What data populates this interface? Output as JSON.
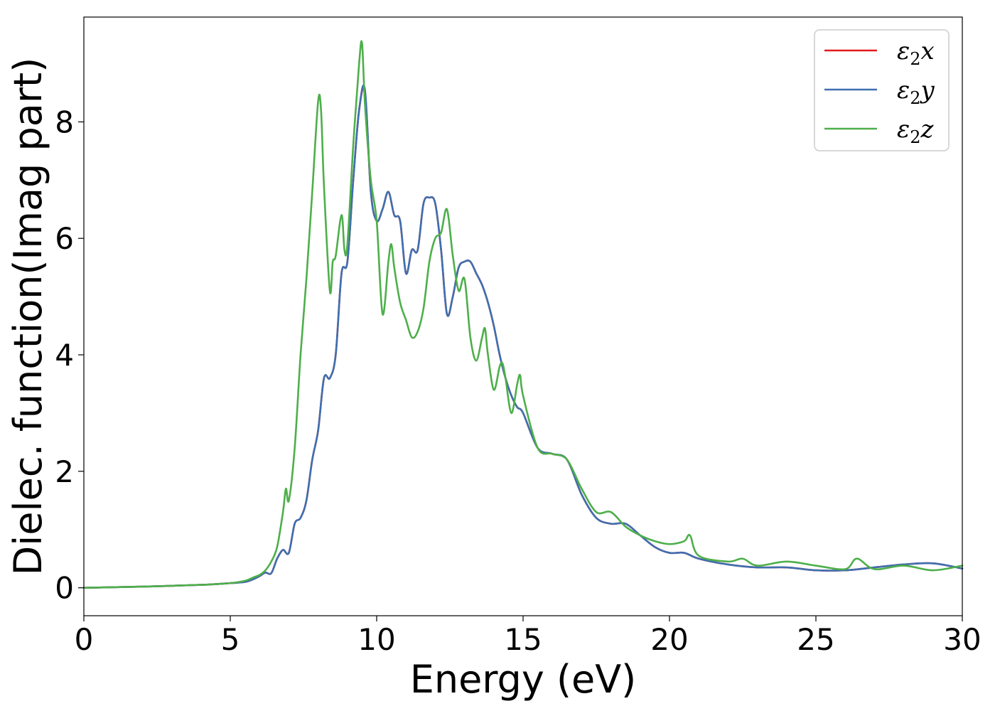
{
  "chart_data": {
    "type": "line",
    "title": "",
    "xlabel": "Energy (eV)",
    "ylabel": "Dielec. function(Imag part)",
    "xlim": [
      0,
      30
    ],
    "ylim": [
      -0.48,
      9.8
    ],
    "xticks": [
      "0",
      "5",
      "10",
      "15",
      "20",
      "25",
      "30"
    ],
    "yticks": [
      "0",
      "2",
      "4",
      "6",
      "8"
    ],
    "grid": false,
    "legend_position": "top-right",
    "series": [
      {
        "name": "ε₂x",
        "legend_base": "ε",
        "legend_sub": "2",
        "legend_suffix": "x",
        "color": "#e41a1c",
        "x": [
          0,
          2,
          4,
          5,
          5.5,
          5.8,
          6.0,
          6.2,
          6.4,
          6.6,
          6.8,
          7.0,
          7.2,
          7.4,
          7.6,
          7.8,
          8.0,
          8.2,
          8.4,
          8.6,
          8.8,
          9.0,
          9.2,
          9.4,
          9.6,
          9.8,
          10.0,
          10.2,
          10.4,
          10.6,
          10.8,
          11.0,
          11.2,
          11.4,
          11.6,
          11.8,
          12.0,
          12.2,
          12.4,
          12.6,
          12.8,
          13.0,
          13.2,
          13.4,
          13.6,
          13.8,
          14.0,
          14.2,
          14.4,
          14.6,
          14.8,
          15.0,
          15.5,
          16.0,
          16.5,
          17.0,
          17.5,
          18.0,
          18.5,
          19.0,
          19.5,
          20.0,
          20.5,
          21.0,
          22.0,
          23.0,
          24.0,
          25.0,
          26.0,
          27.0,
          28.0,
          29.0,
          30.0
        ],
        "y": [
          0.0,
          0.02,
          0.05,
          0.08,
          0.1,
          0.15,
          0.2,
          0.26,
          0.25,
          0.5,
          0.65,
          0.6,
          1.1,
          1.2,
          1.5,
          2.2,
          2.7,
          3.6,
          3.6,
          4.0,
          5.4,
          5.6,
          7.0,
          8.2,
          8.5,
          6.8,
          6.3,
          6.5,
          6.8,
          6.4,
          6.3,
          5.4,
          5.8,
          5.8,
          6.6,
          6.7,
          6.6,
          5.8,
          4.7,
          5.0,
          5.5,
          5.6,
          5.6,
          5.4,
          5.2,
          4.9,
          4.5,
          4.0,
          3.6,
          3.3,
          3.1,
          3.0,
          2.4,
          2.3,
          2.2,
          1.6,
          1.2,
          1.1,
          1.1,
          0.9,
          0.7,
          0.6,
          0.6,
          0.5,
          0.4,
          0.35,
          0.35,
          0.3,
          0.3,
          0.35,
          0.4,
          0.42,
          0.33
        ]
      },
      {
        "name": "ε₂y",
        "legend_base": "ε",
        "legend_sub": "2",
        "legend_suffix": "y",
        "color": "#3e6fb0",
        "x": [
          0,
          2,
          4,
          5,
          5.5,
          5.8,
          6.0,
          6.2,
          6.4,
          6.6,
          6.8,
          7.0,
          7.2,
          7.4,
          7.6,
          7.8,
          8.0,
          8.2,
          8.4,
          8.6,
          8.8,
          9.0,
          9.2,
          9.4,
          9.6,
          9.8,
          10.0,
          10.2,
          10.4,
          10.6,
          10.8,
          11.0,
          11.2,
          11.4,
          11.6,
          11.8,
          12.0,
          12.2,
          12.4,
          12.6,
          12.8,
          13.0,
          13.2,
          13.4,
          13.6,
          13.8,
          14.0,
          14.2,
          14.4,
          14.6,
          14.8,
          15.0,
          15.5,
          16.0,
          16.5,
          17.0,
          17.5,
          18.0,
          18.5,
          19.0,
          19.5,
          20.0,
          20.5,
          21.0,
          22.0,
          23.0,
          24.0,
          25.0,
          26.0,
          27.0,
          28.0,
          29.0,
          30.0
        ],
        "y": [
          0.0,
          0.02,
          0.05,
          0.08,
          0.1,
          0.15,
          0.2,
          0.26,
          0.25,
          0.5,
          0.65,
          0.6,
          1.1,
          1.2,
          1.5,
          2.2,
          2.7,
          3.6,
          3.6,
          4.0,
          5.4,
          5.6,
          7.0,
          8.2,
          8.55,
          6.8,
          6.3,
          6.5,
          6.8,
          6.4,
          6.3,
          5.4,
          5.8,
          5.8,
          6.6,
          6.7,
          6.6,
          5.8,
          4.7,
          5.0,
          5.5,
          5.6,
          5.6,
          5.4,
          5.2,
          4.9,
          4.5,
          4.0,
          3.6,
          3.3,
          3.1,
          3.0,
          2.4,
          2.3,
          2.2,
          1.6,
          1.2,
          1.1,
          1.1,
          0.9,
          0.7,
          0.6,
          0.6,
          0.5,
          0.4,
          0.35,
          0.35,
          0.3,
          0.3,
          0.35,
          0.4,
          0.42,
          0.33
        ]
      },
      {
        "name": "ε₂z",
        "legend_base": "ε",
        "legend_sub": "2",
        "legend_suffix": "z",
        "color": "#4daf4a",
        "x": [
          0,
          2,
          4,
          5,
          5.5,
          5.8,
          6.0,
          6.2,
          6.4,
          6.6,
          6.8,
          6.9,
          7.0,
          7.2,
          7.4,
          7.6,
          7.8,
          8.0,
          8.1,
          8.2,
          8.4,
          8.5,
          8.6,
          8.8,
          8.9,
          9.0,
          9.2,
          9.4,
          9.5,
          9.6,
          9.8,
          10.0,
          10.2,
          10.4,
          10.5,
          10.6,
          10.8,
          11.0,
          11.2,
          11.4,
          11.6,
          11.8,
          12.0,
          12.2,
          12.4,
          12.6,
          12.8,
          13.0,
          13.2,
          13.4,
          13.6,
          13.7,
          13.8,
          14.0,
          14.2,
          14.3,
          14.4,
          14.6,
          14.8,
          14.9,
          15.0,
          15.5,
          16.0,
          16.5,
          17.0,
          17.5,
          18.0,
          18.5,
          19.0,
          19.5,
          20.0,
          20.5,
          20.7,
          21.0,
          22.0,
          22.5,
          23.0,
          24.0,
          25.0,
          26.0,
          26.4,
          27.0,
          28.0,
          29.0,
          30.0
        ],
        "y": [
          0.0,
          0.02,
          0.05,
          0.08,
          0.12,
          0.18,
          0.22,
          0.3,
          0.45,
          0.7,
          1.3,
          1.7,
          1.5,
          2.4,
          4.0,
          5.3,
          6.8,
          8.35,
          8.2,
          6.9,
          5.1,
          5.6,
          5.7,
          6.4,
          5.8,
          5.9,
          7.6,
          9.0,
          9.35,
          8.3,
          7.0,
          6.3,
          4.7,
          5.6,
          5.9,
          5.5,
          4.9,
          4.6,
          4.3,
          4.4,
          4.8,
          5.6,
          6.0,
          6.1,
          6.5,
          5.7,
          5.1,
          5.3,
          4.3,
          3.9,
          4.3,
          4.45,
          4.0,
          3.4,
          3.8,
          3.85,
          3.6,
          3.0,
          3.5,
          3.65,
          3.3,
          2.4,
          2.3,
          2.2,
          1.7,
          1.3,
          1.3,
          1.05,
          0.9,
          0.8,
          0.75,
          0.8,
          0.9,
          0.55,
          0.45,
          0.5,
          0.38,
          0.45,
          0.38,
          0.32,
          0.5,
          0.32,
          0.38,
          0.3,
          0.38
        ]
      }
    ]
  }
}
